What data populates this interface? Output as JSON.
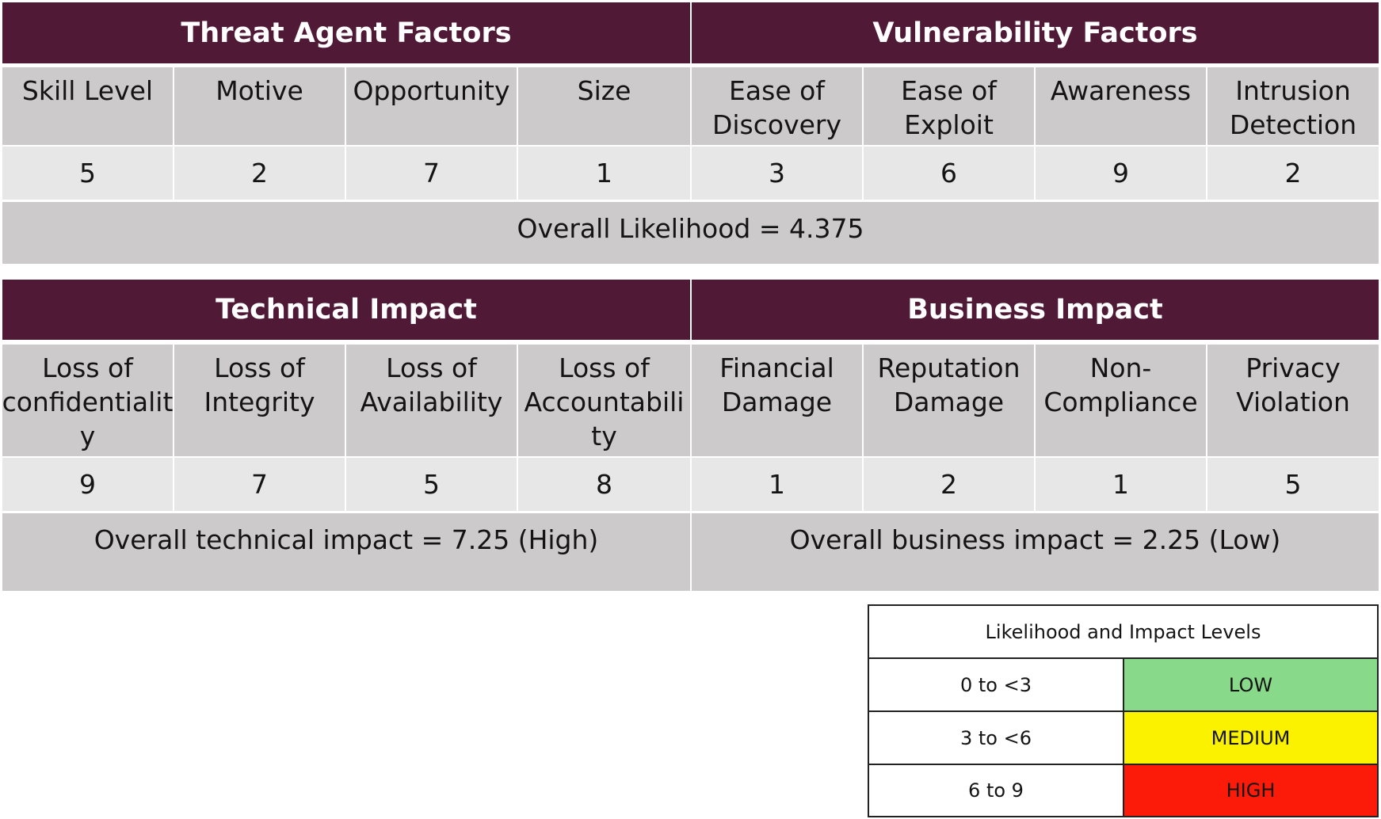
{
  "likelihood_table": {
    "headers": [
      {
        "label": "Threat Agent Factors"
      },
      {
        "label": "Vulnerability Factors"
      }
    ],
    "factors": [
      {
        "label": "Skill Level",
        "value": "5"
      },
      {
        "label": "Motive",
        "value": "2"
      },
      {
        "label": "Opportunity",
        "value": "7"
      },
      {
        "label": "Size",
        "value": "1"
      },
      {
        "label": "Ease of\nDiscovery",
        "value": "3"
      },
      {
        "label": "Ease of\nExploit",
        "value": "6"
      },
      {
        "label": "Awareness",
        "value": "9"
      },
      {
        "label": "Intrusion\nDetection",
        "value": "2"
      }
    ],
    "summary": "Overall Likelihood = 4.375"
  },
  "impact_table": {
    "headers": [
      {
        "label": "Technical Impact"
      },
      {
        "label": "Business Impact"
      }
    ],
    "factors": [
      {
        "label": "Loss of\nconfidentialit\ny",
        "value": "9"
      },
      {
        "label": "Loss of\nIntegrity",
        "value": "7"
      },
      {
        "label": "Loss of\nAvailability",
        "value": "5"
      },
      {
        "label": "Loss of\nAccountabili\nty",
        "value": "8"
      },
      {
        "label": "Financial\nDamage",
        "value": "1"
      },
      {
        "label": "Reputation\nDamage",
        "value": "2"
      },
      {
        "label": "Non-\nCompliance",
        "value": "1"
      },
      {
        "label": "Privacy\nViolation",
        "value": "5"
      }
    ],
    "summaries": [
      {
        "text": "Overall technical impact = 7.25 (High)"
      },
      {
        "text": "Overall business impact = 2.25 (Low)"
      }
    ]
  },
  "legend": {
    "title": "Likelihood and Impact Levels",
    "levels": [
      {
        "range": "0 to <3",
        "label": "LOW",
        "color": "#88d98a"
      },
      {
        "range": "3 to <6",
        "label": "MEDIUM",
        "color": "#fbf200"
      },
      {
        "range": "6 to 9",
        "label": "HIGH",
        "color": "#fb1b08"
      }
    ]
  }
}
